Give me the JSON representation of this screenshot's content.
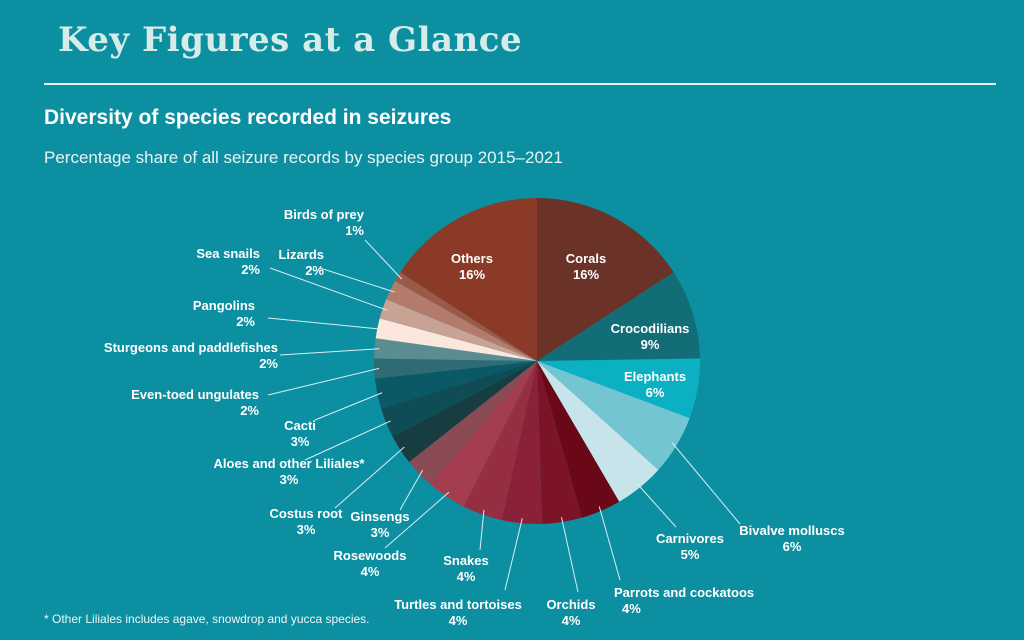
{
  "header": {
    "banner_title": "Key Figures at a Glance"
  },
  "chart_data": {
    "type": "pie",
    "title": "Diversity of species recorded in seizures",
    "subtitle": "Percentage share of all seizure records by species group 2015–2021",
    "footnote": "* Other Liliales includes agave, snowdrop and yucca species.",
    "slices": [
      {
        "label": "Corals",
        "value": 16,
        "display": "16%",
        "color": "#6b3228"
      },
      {
        "label": "Crocodilians",
        "value": 9,
        "display": "9%",
        "color": "#126d77"
      },
      {
        "label": "Elephants",
        "value": 6,
        "display": "6%",
        "color": "#0bb0c3"
      },
      {
        "label": "Bivalve molluscs",
        "value": 6,
        "display": "6%",
        "color": "#73c5d2"
      },
      {
        "label": "Carnivores",
        "value": 5,
        "display": "5%",
        "color": "#c6e4e9"
      },
      {
        "label": "Parrots and cockatoos",
        "value": 4,
        "display": "4%",
        "color": "#6b0818"
      },
      {
        "label": "Orchids",
        "value": 4,
        "display": "4%",
        "color": "#7c1428"
      },
      {
        "label": "Turtles and tortoises",
        "value": 4,
        "display": "4%",
        "color": "#8a2136"
      },
      {
        "label": "Snakes",
        "value": 4,
        "display": "4%",
        "color": "#962e42"
      },
      {
        "label": "Rosewoods",
        "value": 4,
        "display": "4%",
        "color": "#a43e4f"
      },
      {
        "label": "Ginsengs",
        "value": 3,
        "display": "3%",
        "color": "#8a4b55"
      },
      {
        "label": "Costus root",
        "value": 3,
        "display": "3%",
        "color": "#173d40"
      },
      {
        "label": "Aloes and other Liliales*",
        "value": 3,
        "display": "3%",
        "color": "#0f4c55"
      },
      {
        "label": "Cacti",
        "value": 3,
        "display": "3%",
        "color": "#0b5866"
      },
      {
        "label": "Even-toed ungulates",
        "value": 2,
        "display": "2%",
        "color": "#2e6b73"
      },
      {
        "label": "Sturgeons and paddlefishes",
        "value": 2,
        "display": "2%",
        "color": "#5b8c92"
      },
      {
        "label": "Pangolins",
        "value": 2,
        "display": "2%",
        "color": "#fbe7dc"
      },
      {
        "label": "Sea snails",
        "value": 2,
        "display": "2%",
        "color": "#c9a296"
      },
      {
        "label": "Lizards",
        "value": 2,
        "display": "2%",
        "color": "#b27b6c"
      },
      {
        "label": "Birds of prey",
        "value": 1,
        "display": "1%",
        "color": "#9b5a48"
      },
      {
        "label": "Others",
        "value": 16,
        "display": "16%",
        "color": "#8c3a28"
      }
    ]
  }
}
